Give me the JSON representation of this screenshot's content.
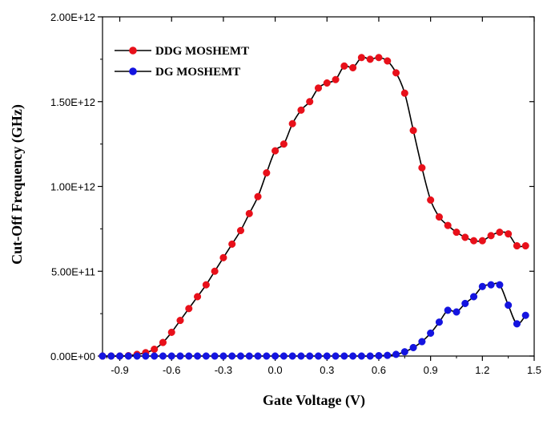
{
  "chart_data": {
    "type": "line",
    "title": "",
    "xlabel": "Gate Voltage (V)",
    "ylabel": "Cut-Off Frequency (GHz)",
    "xlim": [
      -1.0,
      1.5
    ],
    "ylim": [
      0,
      2000000000000.0
    ],
    "xticks": [
      -0.9,
      -0.6,
      -0.3,
      0.0,
      0.3,
      0.6,
      0.9,
      1.2,
      1.5
    ],
    "xtick_labels": [
      "-0.9",
      "-0.6",
      "-0.3",
      "0.0",
      "0.3",
      "0.6",
      "0.9",
      "1.2",
      "1.5"
    ],
    "yticks": [
      0,
      500000000000.0,
      1000000000000.0,
      1500000000000.0,
      2000000000000.0
    ],
    "ytick_labels": [
      "0.00E+00",
      "5.00E+11",
      "1.00E+12",
      "1.50E+12",
      "2.00E+12"
    ],
    "grid": false,
    "legend_position": "top-left",
    "x": [
      -1.0,
      -0.95,
      -0.9,
      -0.85,
      -0.8,
      -0.75,
      -0.7,
      -0.65,
      -0.6,
      -0.55,
      -0.5,
      -0.45,
      -0.4,
      -0.35,
      -0.3,
      -0.25,
      -0.2,
      -0.15,
      -0.1,
      -0.05,
      0.0,
      0.05,
      0.1,
      0.15,
      0.2,
      0.25,
      0.3,
      0.35,
      0.4,
      0.45,
      0.5,
      0.55,
      0.6,
      0.65,
      0.7,
      0.75,
      0.8,
      0.85,
      0.9,
      0.95,
      1.0,
      1.05,
      1.1,
      1.15,
      1.2,
      1.25,
      1.3,
      1.35,
      1.4,
      1.45
    ],
    "series": [
      {
        "name": "DDG MOSHEMT",
        "color": "#e8101a",
        "values": [
          0,
          0,
          0,
          2000000000.0,
          10000000000.0,
          20000000000.0,
          40000000000.0,
          80000000000.0,
          140000000000.0,
          210000000000.0,
          280000000000.0,
          350000000000.0,
          420000000000.0,
          500000000000.0,
          580000000000.0,
          660000000000.0,
          740000000000.0,
          840000000000.0,
          940000000000.0,
          1080000000000.0,
          1210000000000.0,
          1250000000000.0,
          1370000000000.0,
          1450000000000.0,
          1500000000000.0,
          1580000000000.0,
          1610000000000.0,
          1630000000000.0,
          1710000000000.0,
          1700000000000.0,
          1760000000000.0,
          1750000000000.0,
          1760000000000.0,
          1740000000000.0,
          1670000000000.0,
          1550000000000.0,
          1330000000000.0,
          1110000000000.0,
          920000000000.0,
          820000000000.0,
          770000000000.0,
          730000000000.0,
          700000000000.0,
          680000000000.0,
          680000000000.0,
          710000000000.0,
          730000000000.0,
          720000000000.0,
          650000000000.0,
          650000000000.0
        ]
      },
      {
        "name": "DG MOSHEMT",
        "color": "#1414e0",
        "values": [
          0,
          0,
          0,
          0,
          0,
          0,
          0,
          0,
          0,
          0,
          0,
          0,
          0,
          0,
          0,
          0,
          0,
          0,
          0,
          0,
          0,
          0,
          0,
          0,
          0,
          0,
          0,
          0,
          0,
          0,
          0,
          0,
          2000000000.0,
          4000000000.0,
          10000000000.0,
          25000000000.0,
          50000000000.0,
          85000000000.0,
          135000000000.0,
          200000000000.0,
          270000000000.0,
          260000000000.0,
          310000000000.0,
          350000000000.0,
          410000000000.0,
          420000000000.0,
          420000000000.0,
          300000000000.0,
          190000000000.0,
          240000000000.0
        ]
      }
    ]
  }
}
